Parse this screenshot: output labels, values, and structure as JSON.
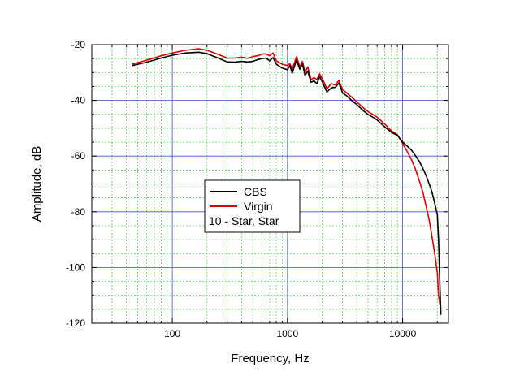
{
  "chart_data": {
    "type": "line",
    "xlabel": "Frequency, Hz",
    "ylabel": "Amplitude, dB",
    "x_scale": "log",
    "xlim": [
      20,
      25000
    ],
    "ylim": [
      -120,
      -20
    ],
    "x_ticks": [
      {
        "value": 100,
        "label": "100"
      },
      {
        "value": 1000,
        "label": "1000"
      },
      {
        "value": 10000,
        "label": "10000"
      }
    ],
    "y_ticks": [
      {
        "value": -20,
        "label": "-20"
      },
      {
        "value": -40,
        "label": "-40"
      },
      {
        "value": -60,
        "label": "-60"
      },
      {
        "value": -80,
        "label": "-80"
      },
      {
        "value": -100,
        "label": "-100"
      },
      {
        "value": -120,
        "label": "-120"
      }
    ],
    "grid": true,
    "legend": {
      "position": "center",
      "caption": "10 - Star, Star"
    },
    "series": [
      {
        "name": "CBS",
        "color": "#000000",
        "points": [
          [
            45,
            -27.5
          ],
          [
            60,
            -26.3
          ],
          [
            80,
            -24.8
          ],
          [
            100,
            -23.8
          ],
          [
            130,
            -23.0
          ],
          [
            170,
            -22.7
          ],
          [
            200,
            -23.2
          ],
          [
            250,
            -24.8
          ],
          [
            300,
            -26.2
          ],
          [
            350,
            -26.3
          ],
          [
            400,
            -26.0
          ],
          [
            450,
            -26.2
          ],
          [
            500,
            -26.0
          ],
          [
            550,
            -25.4
          ],
          [
            600,
            -25.0
          ],
          [
            650,
            -24.8
          ],
          [
            700,
            -25.8
          ],
          [
            750,
            -24.6
          ],
          [
            800,
            -27.0
          ],
          [
            900,
            -28.4
          ],
          [
            1000,
            -29.0
          ],
          [
            1050,
            -27.5
          ],
          [
            1100,
            -30.2
          ],
          [
            1200,
            -25.5
          ],
          [
            1280,
            -28.8
          ],
          [
            1350,
            -27.0
          ],
          [
            1420,
            -31.0
          ],
          [
            1500,
            -29.5
          ],
          [
            1600,
            -33.5
          ],
          [
            1700,
            -33.0
          ],
          [
            1800,
            -34.0
          ],
          [
            1900,
            -31.5
          ],
          [
            2000,
            -33.2
          ],
          [
            2100,
            -35.2
          ],
          [
            2200,
            -37.0
          ],
          [
            2400,
            -35.5
          ],
          [
            2600,
            -35.3
          ],
          [
            2800,
            -33.8
          ],
          [
            3000,
            -37.2
          ],
          [
            3300,
            -38.5
          ],
          [
            3600,
            -40.0
          ],
          [
            4000,
            -41.5
          ],
          [
            4500,
            -43.5
          ],
          [
            5000,
            -45.0
          ],
          [
            5500,
            -46.0
          ],
          [
            6000,
            -47.0
          ],
          [
            7000,
            -49.5
          ],
          [
            8000,
            -51.5
          ],
          [
            9000,
            -52.5
          ],
          [
            10000,
            -55.0
          ],
          [
            11000,
            -56.5
          ],
          [
            12000,
            -58.0
          ],
          [
            13000,
            -60.0
          ],
          [
            14000,
            -62.0
          ],
          [
            15000,
            -64.5
          ],
          [
            16000,
            -67.0
          ],
          [
            17000,
            -70.0
          ],
          [
            18000,
            -73.0
          ],
          [
            19000,
            -77.0
          ],
          [
            20000,
            -81.0
          ],
          [
            20500,
            -90.0
          ],
          [
            21000,
            -105.0
          ],
          [
            21500,
            -117.0
          ]
        ]
      },
      {
        "name": "Virgin",
        "color": "#e00000",
        "points": [
          [
            45,
            -27.0
          ],
          [
            60,
            -25.6
          ],
          [
            80,
            -24.0
          ],
          [
            100,
            -23.0
          ],
          [
            130,
            -22.0
          ],
          [
            170,
            -21.5
          ],
          [
            200,
            -22.0
          ],
          [
            250,
            -23.5
          ],
          [
            300,
            -24.8
          ],
          [
            350,
            -24.8
          ],
          [
            400,
            -24.5
          ],
          [
            450,
            -24.9
          ],
          [
            500,
            -24.3
          ],
          [
            550,
            -24.0
          ],
          [
            600,
            -23.4
          ],
          [
            650,
            -23.3
          ],
          [
            700,
            -24.0
          ],
          [
            750,
            -23.0
          ],
          [
            800,
            -25.8
          ],
          [
            900,
            -27.0
          ],
          [
            1000,
            -27.5
          ],
          [
            1050,
            -26.8
          ],
          [
            1100,
            -28.8
          ],
          [
            1200,
            -24.3
          ],
          [
            1280,
            -28.0
          ],
          [
            1350,
            -26.0
          ],
          [
            1420,
            -30.0
          ],
          [
            1500,
            -28.0
          ],
          [
            1600,
            -32.5
          ],
          [
            1700,
            -31.8
          ],
          [
            1800,
            -32.5
          ],
          [
            1900,
            -30.5
          ],
          [
            2000,
            -32.0
          ],
          [
            2100,
            -34.0
          ],
          [
            2200,
            -35.8
          ],
          [
            2400,
            -34.0
          ],
          [
            2600,
            -34.5
          ],
          [
            2800,
            -32.8
          ],
          [
            3000,
            -36.0
          ],
          [
            3300,
            -37.5
          ],
          [
            3600,
            -38.8
          ],
          [
            4000,
            -40.5
          ],
          [
            4500,
            -42.5
          ],
          [
            5000,
            -44.0
          ],
          [
            5500,
            -45.0
          ],
          [
            6000,
            -46.0
          ],
          [
            7000,
            -48.5
          ],
          [
            8000,
            -51.0
          ],
          [
            9000,
            -52.3
          ],
          [
            10000,
            -55.5
          ],
          [
            11000,
            -58.5
          ],
          [
            12000,
            -61.5
          ],
          [
            13000,
            -65.0
          ],
          [
            14000,
            -69.0
          ],
          [
            15000,
            -73.0
          ],
          [
            16000,
            -78.0
          ],
          [
            17000,
            -83.0
          ],
          [
            18000,
            -89.0
          ],
          [
            19000,
            -95.0
          ],
          [
            20000,
            -102.0
          ],
          [
            20500,
            -110.0
          ],
          [
            21000,
            -113.0
          ],
          [
            21500,
            -115.0
          ]
        ]
      }
    ]
  }
}
